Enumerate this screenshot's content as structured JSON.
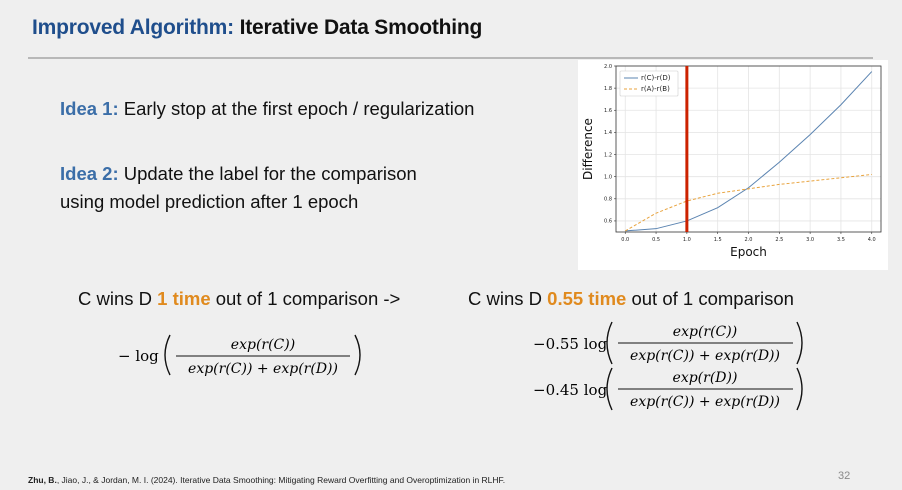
{
  "title": {
    "accent": "Improved Algorithm:",
    "rest": " Iterative Data Smoothing"
  },
  "ideas": [
    {
      "label": "Idea 1:",
      "text": " Early stop at the first epoch / regularization"
    },
    {
      "label": "Idea 2:",
      "text_line1": " Update the label for the comparison",
      "text_line2": "using model prediction after 1 epoch"
    }
  ],
  "sentences": {
    "left": {
      "pre": "C wins D ",
      "highlight": "1 time",
      "post": " out of 1 comparison ->"
    },
    "right": {
      "pre": "C wins D ",
      "highlight": "0.55 time",
      "post": " out of 1 comparison"
    }
  },
  "formulas": {
    "left": {
      "prefix": "− log",
      "numerator": "exp(r(C))",
      "denominator": "exp(r(C)) + exp(r(D))"
    },
    "right_top": {
      "prefix": "−0.55 log",
      "numerator": "exp(r(C))",
      "denominator": "exp(r(C)) + exp(r(D))"
    },
    "right_bottom": {
      "prefix": "−0.45 log",
      "numerator": "exp(r(D))",
      "denominator": "exp(r(C)) + exp(r(D))"
    }
  },
  "footer": {
    "authors_bold": "Zhu, B.",
    "rest": ", Jiao, J., & Jordan, M. I. (2024). Iterative Data Smoothing: Mitigating Reward Overfitting and Overoptimization in RLHF."
  },
  "page_number": "32",
  "colors": {
    "accent_blue": "#1f4e8c",
    "idea_blue": "#3b6ea8",
    "highlight_orange": "#e08a1e",
    "series_blue": "#5b84b1",
    "series_orange": "#e8a33d",
    "marker_red": "#cc2200"
  },
  "chart_data": {
    "type": "line",
    "xlabel": "Epoch",
    "ylabel": "Difference",
    "xlim": [
      -0.15,
      4.15
    ],
    "ylim": [
      0.5,
      2.0
    ],
    "xticks": [
      "0.0",
      "0.5",
      "1.0",
      "1.5",
      "2.0",
      "2.5",
      "3.0",
      "3.5",
      "4.0"
    ],
    "yticks": [
      "0.6",
      "0.8",
      "1.0",
      "1.2",
      "1.4",
      "1.6",
      "1.8",
      "2.0"
    ],
    "grid": true,
    "legend_position": "top-left",
    "vertical_marker_x": 1.0,
    "series": [
      {
        "name": "r(C)-r(D)",
        "style": "solid",
        "x": [
          0.0,
          0.5,
          1.0,
          1.5,
          2.0,
          2.5,
          3.0,
          3.5,
          4.0
        ],
        "y": [
          0.51,
          0.53,
          0.6,
          0.72,
          0.9,
          1.13,
          1.38,
          1.65,
          1.95
        ]
      },
      {
        "name": "r(A)-r(B)",
        "style": "dashed",
        "x": [
          0.0,
          0.5,
          1.0,
          1.5,
          2.0,
          2.5,
          3.0,
          3.5,
          4.0
        ],
        "y": [
          0.51,
          0.67,
          0.78,
          0.85,
          0.89,
          0.93,
          0.96,
          0.99,
          1.02
        ]
      }
    ]
  }
}
